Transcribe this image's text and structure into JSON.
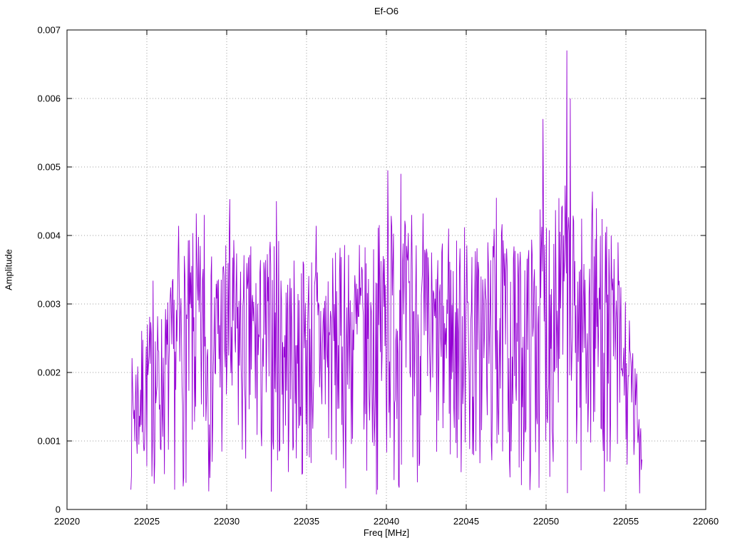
{
  "chart_data": {
    "type": "line",
    "title": "Ef-O6",
    "xlabel": "Freq [MHz]",
    "ylabel": "Amplitude",
    "xlim": [
      22020,
      22060
    ],
    "ylim": [
      0,
      0.007
    ],
    "xticks": {
      "values": [
        22020,
        22025,
        22030,
        22035,
        22040,
        22045,
        22050,
        22055,
        22060
      ],
      "labels": [
        "22020",
        "22025",
        "22030",
        "22035",
        "22040",
        "22045",
        "22050",
        "22055",
        "22060"
      ]
    },
    "yticks": {
      "values": [
        0,
        0.001,
        0.002,
        0.003,
        0.004,
        0.005,
        0.006,
        0.007
      ],
      "labels": [
        "0",
        "0.001",
        "0.002",
        "0.003",
        "0.004",
        "0.005",
        "0.006",
        "0.007"
      ]
    },
    "grid": true,
    "legend": "none",
    "line_color": "#9400d3",
    "grid_color": "#9f9f9f",
    "border_color": "#000000",
    "series": {
      "name": "Ef-O6 spectrum",
      "x_start": 22024.0,
      "x_end": 22056.0,
      "n_points": 900,
      "noise_seed": 7,
      "noise_floor": 0.0002,
      "noise_power": 0.7,
      "noise_scale": 0.95,
      "noise_model": "dense noise spectrum: y = noise_floor + envelope(x) * u^noise_power (u uniform, deterministic seed); explicit peaks overlaid",
      "envelope": [
        [
          22024.0,
          0.0021
        ],
        [
          22025.0,
          0.0028
        ],
        [
          22026.0,
          0.0029
        ],
        [
          22027.0,
          0.0037
        ],
        [
          22028.0,
          0.0041
        ],
        [
          22029.0,
          0.0037
        ],
        [
          22030.0,
          0.0041
        ],
        [
          22031.0,
          0.0038
        ],
        [
          22032.0,
          0.0037
        ],
        [
          22033.0,
          0.0041
        ],
        [
          22034.0,
          0.0036
        ],
        [
          22035.0,
          0.0038
        ],
        [
          22036.0,
          0.0038
        ],
        [
          22037.0,
          0.0038
        ],
        [
          22038.0,
          0.0039
        ],
        [
          22039.0,
          0.0038
        ],
        [
          22040.0,
          0.0046
        ],
        [
          22041.0,
          0.0043
        ],
        [
          22042.0,
          0.0041
        ],
        [
          22043.0,
          0.0038
        ],
        [
          22044.0,
          0.004
        ],
        [
          22045.0,
          0.004
        ],
        [
          22046.0,
          0.0039
        ],
        [
          22047.0,
          0.0043
        ],
        [
          22048.0,
          0.0038
        ],
        [
          22049.0,
          0.004
        ],
        [
          22050.0,
          0.0047
        ],
        [
          22051.0,
          0.0049
        ],
        [
          22052.0,
          0.0043
        ],
        [
          22053.0,
          0.0045
        ],
        [
          22054.0,
          0.0041
        ],
        [
          22055.0,
          0.0031
        ],
        [
          22055.6,
          0.0021
        ],
        [
          22056.0,
          0.0013
        ]
      ],
      "peaks": [
        [
          22025.4,
          0.00334
        ],
        [
          22027.0,
          0.00414
        ],
        [
          22028.1,
          0.00432
        ],
        [
          22028.6,
          0.0043
        ],
        [
          22030.2,
          0.00453
        ],
        [
          22031.5,
          0.00384
        ],
        [
          22033.1,
          0.0045
        ],
        [
          22035.6,
          0.00414
        ],
        [
          22037.4,
          0.00386
        ],
        [
          22038.3,
          0.00386
        ],
        [
          22040.1,
          0.00495
        ],
        [
          22040.9,
          0.0049
        ],
        [
          22041.6,
          0.0043
        ],
        [
          22042.3,
          0.00432
        ],
        [
          22043.9,
          0.0041
        ],
        [
          22044.9,
          0.00412
        ],
        [
          22046.9,
          0.00455
        ],
        [
          22048.0,
          0.00384
        ],
        [
          22049.8,
          0.0057
        ],
        [
          22050.6,
          0.00437
        ],
        [
          22051.3,
          0.0067
        ],
        [
          22051.5,
          0.006
        ],
        [
          22052.9,
          0.00464
        ],
        [
          22053.5,
          0.00424
        ],
        [
          22054.5,
          0.0039
        ]
      ]
    }
  }
}
